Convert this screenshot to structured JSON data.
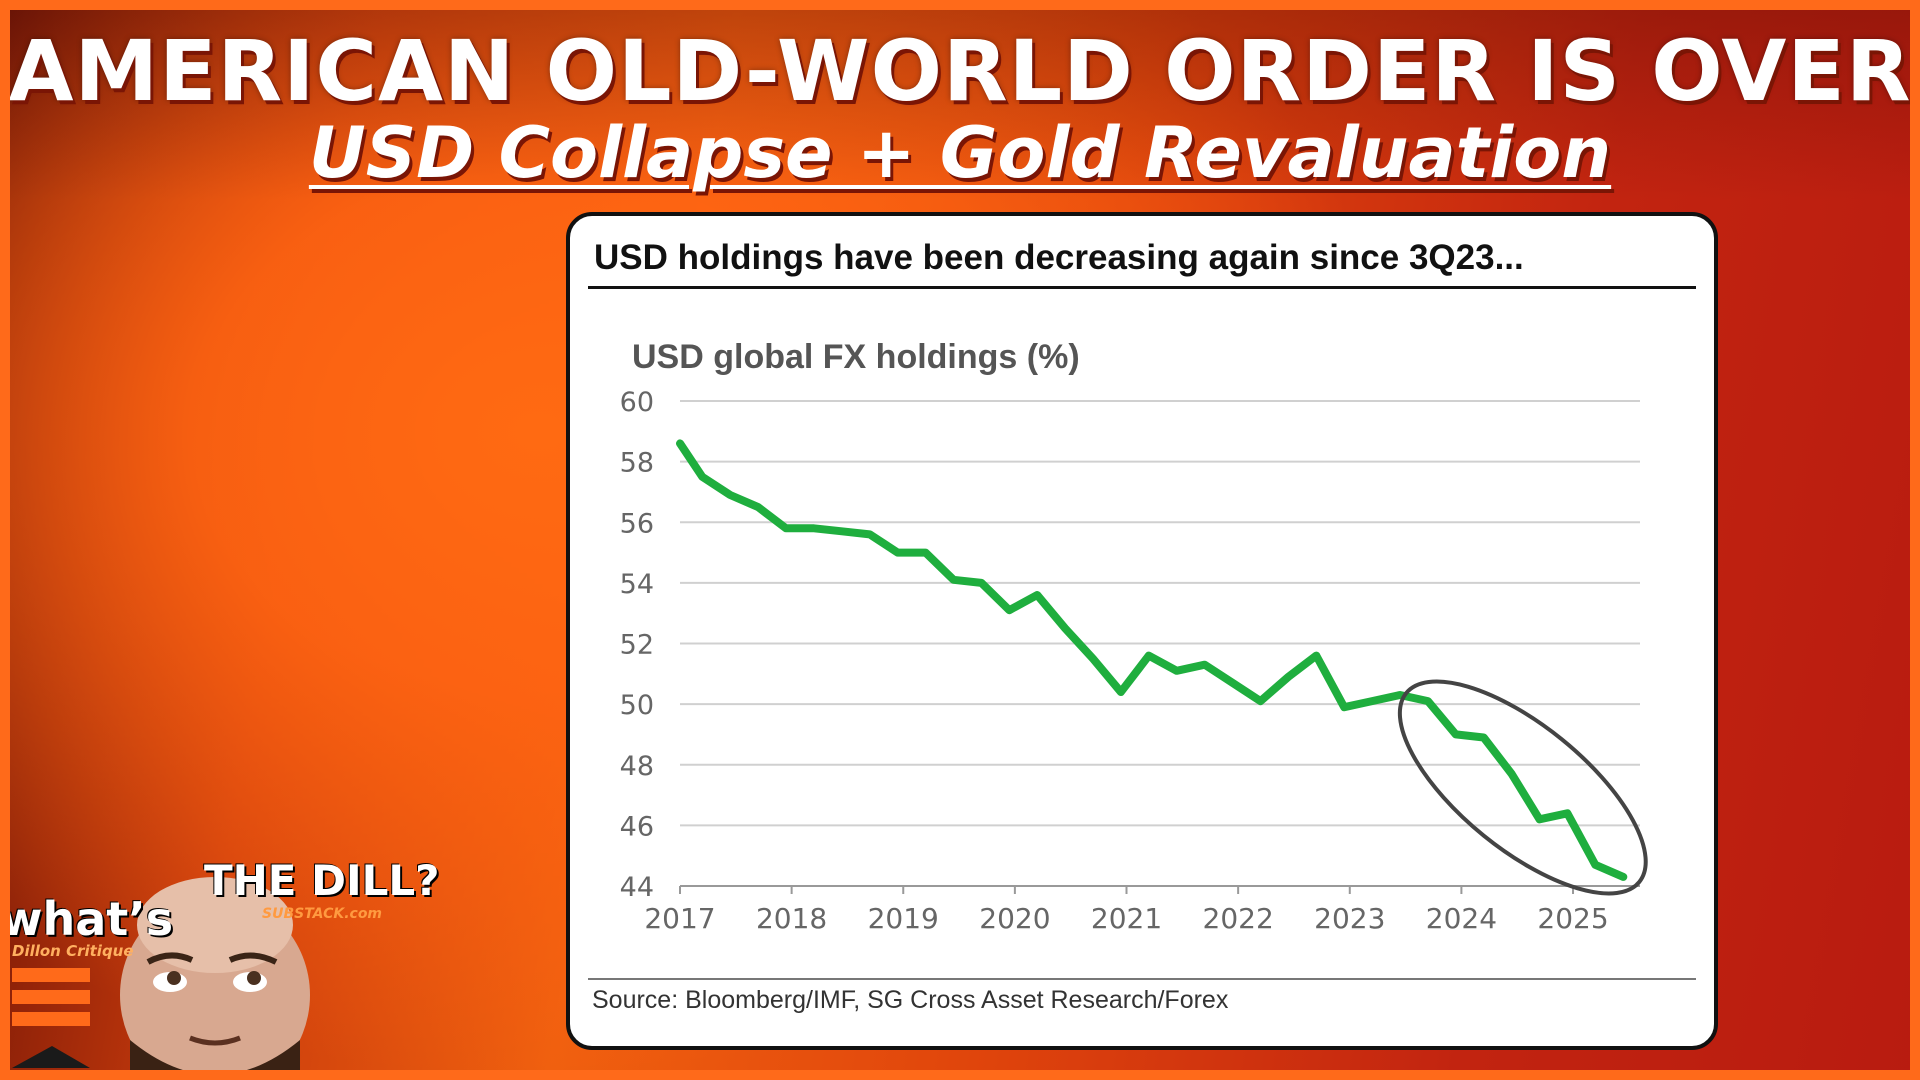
{
  "headline": "AMERICAN OLD-WORLD ORDER IS OVER",
  "subheadline": "USD Collapse + Gold Revaluation",
  "card": {
    "title": "USD holdings have been decreasing again since 3Q23...",
    "source": "Source: Bloomberg/IMF, SG Cross Asset Research/Forex"
  },
  "branding": {
    "whats": "what’s",
    "dill": "THE DILL?",
    "substack": "SUBSTACK.com",
    "dillon": "Dillon Critique"
  },
  "colors": {
    "line": "#1fae3e",
    "frame": "#ff6a1a",
    "annotation": "#444444"
  },
  "chart_data": {
    "type": "line",
    "title": "USD global FX holdings (%)",
    "xlabel": "",
    "ylabel": "",
    "ylim": [
      44,
      60
    ],
    "xlim": [
      2017.0,
      2025.6
    ],
    "yticks": [
      60,
      58,
      56,
      54,
      52,
      50,
      48,
      46,
      44
    ],
    "xticks": [
      2017,
      2018,
      2019,
      2020,
      2021,
      2022,
      2023,
      2024,
      2025
    ],
    "grid": true,
    "series": [
      {
        "name": "",
        "x": [
          2017.0,
          2017.2,
          2017.45,
          2017.7,
          2017.95,
          2018.2,
          2018.45,
          2018.7,
          2018.95,
          2019.2,
          2019.45,
          2019.7,
          2019.95,
          2020.2,
          2020.45,
          2020.7,
          2020.95,
          2021.2,
          2021.45,
          2021.7,
          2021.95,
          2022.2,
          2022.45,
          2022.7,
          2022.95,
          2023.2,
          2023.45,
          2023.7,
          2023.95,
          2024.2,
          2024.45,
          2024.7,
          2024.95,
          2025.2,
          2025.45
        ],
        "y": [
          58.6,
          57.5,
          56.9,
          56.5,
          55.8,
          55.8,
          55.7,
          55.6,
          55.0,
          55.0,
          54.1,
          54.0,
          53.1,
          53.6,
          52.5,
          51.5,
          50.4,
          51.6,
          51.1,
          51.3,
          50.7,
          50.1,
          50.9,
          51.6,
          49.9,
          50.1,
          50.3,
          50.1,
          49.0,
          48.9,
          47.7,
          46.2,
          46.4,
          44.7,
          44.3
        ]
      }
    ],
    "annotation": "circled 3Q23–2025 decline"
  }
}
